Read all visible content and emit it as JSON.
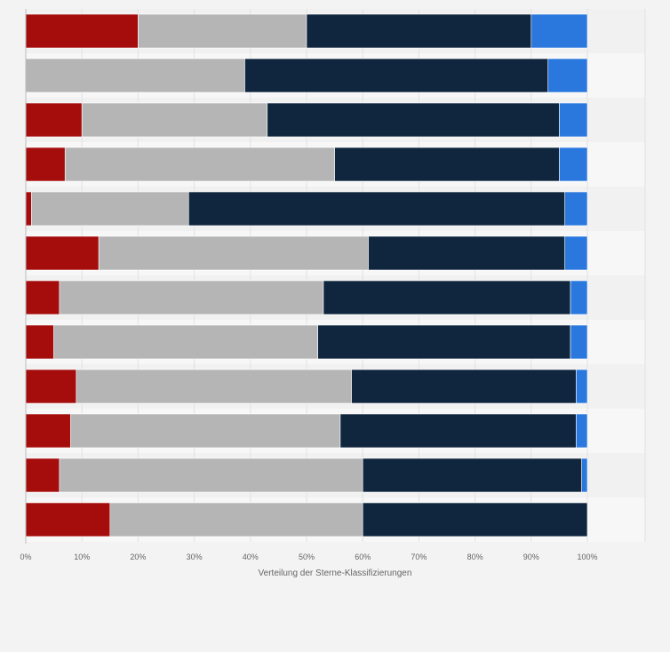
{
  "chart_data": {
    "type": "bar",
    "orientation": "horizontal",
    "stacked": true,
    "categories": [
      "",
      "",
      "",
      "",
      "",
      "",
      "",
      "",
      "",
      "",
      "",
      ""
    ],
    "series": [
      {
        "color": "#a50c0c",
        "values": [
          20,
          0,
          10,
          7,
          1,
          13,
          6,
          5,
          9,
          8,
          6,
          15
        ]
      },
      {
        "color": "#b5b5b5",
        "values": [
          30,
          39,
          33,
          48,
          28,
          48,
          47,
          47,
          49,
          48,
          54,
          45
        ]
      },
      {
        "color": "#10263f",
        "values": [
          40,
          54,
          52,
          40,
          67,
          35,
          44,
          45,
          40,
          42,
          39,
          40
        ]
      },
      {
        "color": "#2a78de",
        "values": [
          10,
          7,
          5,
          5,
          4,
          4,
          3,
          3,
          2,
          2,
          1,
          0
        ]
      }
    ],
    "xlabel": "Verteilung der Sterne-Klassifizierungen",
    "xlim": [
      0,
      100
    ],
    "xticks": [
      "0%",
      "10%",
      "20%",
      "30%",
      "40%",
      "50%",
      "60%",
      "70%",
      "80%",
      "90%",
      "100%"
    ],
    "grid": true
  }
}
